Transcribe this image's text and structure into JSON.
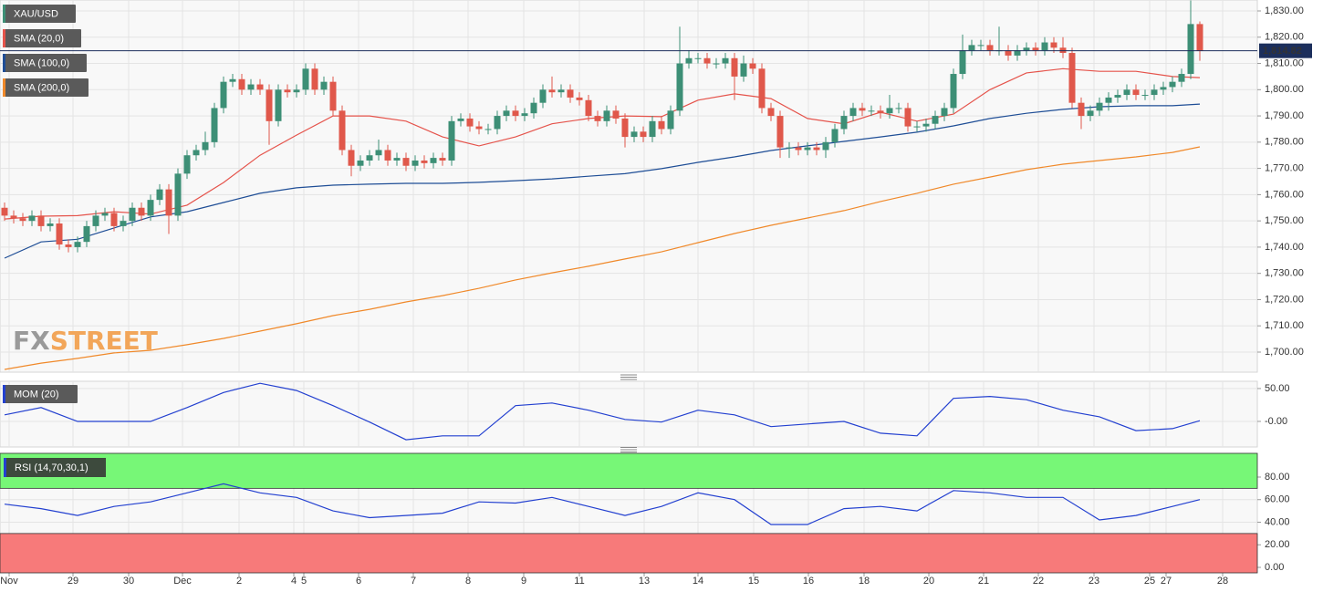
{
  "chart_data": [
    {
      "type": "candlestick",
      "title": "XAU/USD",
      "colors": {
        "up": "#3d8f76",
        "down": "#e0584b"
      },
      "last_price_label": "1,814.82",
      "last_price_color": "#1c2f5c",
      "watermark": {
        "part1": "FX",
        "part2": "STREET",
        "color1": "#9a9a9a",
        "color2": "#f2a65a"
      },
      "open": [
        1755,
        1752,
        1751,
        1750,
        1752,
        1748,
        1749,
        1741,
        1740,
        1742,
        1748,
        1752,
        1753,
        1748,
        1750,
        1755,
        1752,
        1758,
        1762,
        1752,
        1768,
        1775,
        1777,
        1780,
        1793,
        1803,
        1804,
        1800,
        1802,
        1800,
        1788,
        1800,
        1799,
        1800,
        1808,
        1800,
        1803,
        1792,
        1777,
        1771,
        1773,
        1775,
        1777,
        1773,
        1774,
        1771,
        1773,
        1772,
        1774,
        1773,
        1788,
        1789,
        1786,
        1785,
        1785,
        1790,
        1792,
        1790,
        1791,
        1795,
        1800,
        1799,
        1800,
        1797,
        1796,
        1790,
        1788,
        1792,
        1789,
        1782,
        1784,
        1782,
        1788,
        1785,
        1792,
        1810,
        1812,
        1812,
        1810,
        1810,
        1812,
        1805,
        1810,
        1808,
        1793,
        1790,
        1778,
        1778,
        1777,
        1778,
        1777,
        1780,
        1785,
        1790,
        1793,
        1792,
        1792,
        1791,
        1793,
        1793,
        1786,
        1786,
        1787,
        1790,
        1793,
        1806,
        1815,
        1817,
        1817,
        1815,
        1815,
        1813,
        1815,
        1816,
        1815,
        1818,
        1816,
        1814,
        1795,
        1790,
        1792,
        1795,
        1797,
        1798,
        1800,
        1798,
        1798,
        1800,
        1801,
        1803,
        1806,
        1825
      ],
      "high": [
        1757,
        1754,
        1753,
        1754,
        1754,
        1751,
        1751,
        1743,
        1744,
        1750,
        1754,
        1755,
        1755,
        1752,
        1757,
        1757,
        1760,
        1764,
        1764,
        1770,
        1777,
        1779,
        1784,
        1795,
        1805,
        1806,
        1806,
        1804,
        1804,
        1802,
        1802,
        1802,
        1802,
        1810,
        1810,
        1805,
        1805,
        1794,
        1779,
        1775,
        1777,
        1781,
        1779,
        1776,
        1776,
        1775,
        1775,
        1776,
        1776,
        1790,
        1791,
        1791,
        1788,
        1787,
        1792,
        1794,
        1794,
        1793,
        1797,
        1802,
        1805,
        1802,
        1802,
        1799,
        1798,
        1792,
        1794,
        1794,
        1791,
        1786,
        1786,
        1790,
        1790,
        1794,
        1824,
        1815,
        1814,
        1814,
        1812,
        1814,
        1814,
        1813,
        1812,
        1810,
        1795,
        1792,
        1780,
        1780,
        1780,
        1780,
        1782,
        1787,
        1792,
        1795,
        1795,
        1794,
        1794,
        1798,
        1795,
        1795,
        1788,
        1789,
        1792,
        1795,
        1808,
        1821,
        1819,
        1819,
        1819,
        1824,
        1817,
        1817,
        1818,
        1818,
        1820,
        1820,
        1820,
        1816,
        1797,
        1794,
        1797,
        1799,
        1800,
        1802,
        1802,
        1800,
        1802,
        1803,
        1805,
        1808,
        1834,
        1826
      ],
      "low": [
        1750,
        1749,
        1748,
        1748,
        1746,
        1746,
        1739,
        1738,
        1738,
        1740,
        1746,
        1750,
        1746,
        1746,
        1748,
        1750,
        1750,
        1756,
        1745,
        1750,
        1766,
        1773,
        1775,
        1778,
        1791,
        1801,
        1798,
        1798,
        1798,
        1779,
        1786,
        1797,
        1797,
        1798,
        1798,
        1798,
        1790,
        1775,
        1767,
        1769,
        1771,
        1773,
        1771,
        1771,
        1769,
        1769,
        1770,
        1770,
        1771,
        1771,
        1786,
        1784,
        1783,
        1783,
        1783,
        1788,
        1788,
        1788,
        1789,
        1793,
        1797,
        1797,
        1795,
        1794,
        1788,
        1786,
        1786,
        1787,
        1778,
        1780,
        1780,
        1780,
        1783,
        1783,
        1790,
        1808,
        1810,
        1808,
        1808,
        1808,
        1796,
        1803,
        1806,
        1791,
        1788,
        1774,
        1774,
        1775,
        1775,
        1775,
        1774,
        1778,
        1783,
        1788,
        1790,
        1790,
        1789,
        1789,
        1791,
        1784,
        1784,
        1784,
        1785,
        1788,
        1791,
        1804,
        1813,
        1815,
        1813,
        1813,
        1811,
        1811,
        1813,
        1813,
        1813,
        1814,
        1812,
        1793,
        1785,
        1788,
        1790,
        1792,
        1795,
        1796,
        1796,
        1796,
        1796,
        1798,
        1799,
        1801,
        1804,
        1811
      ],
      "close": [
        1752,
        1751,
        1750,
        1752,
        1748,
        1749,
        1741,
        1740,
        1742,
        1748,
        1752,
        1753,
        1748,
        1750,
        1755,
        1752,
        1758,
        1762,
        1752,
        1768,
        1775,
        1777,
        1780,
        1793,
        1803,
        1804,
        1800,
        1802,
        1800,
        1788,
        1800,
        1799,
        1800,
        1808,
        1800,
        1803,
        1792,
        1777,
        1771,
        1773,
        1775,
        1777,
        1773,
        1774,
        1771,
        1773,
        1772,
        1774,
        1773,
        1788,
        1789,
        1786,
        1785,
        1785,
        1790,
        1792,
        1790,
        1791,
        1795,
        1800,
        1799,
        1800,
        1797,
        1796,
        1790,
        1788,
        1792,
        1789,
        1782,
        1784,
        1782,
        1788,
        1785,
        1792,
        1810,
        1812,
        1812,
        1810,
        1810,
        1812,
        1805,
        1810,
        1808,
        1793,
        1790,
        1778,
        1778,
        1777,
        1778,
        1777,
        1780,
        1785,
        1790,
        1793,
        1792,
        1792,
        1791,
        1793,
        1793,
        1786,
        1786,
        1787,
        1790,
        1793,
        1806,
        1815,
        1817,
        1817,
        1815,
        1815,
        1813,
        1815,
        1816,
        1815,
        1818,
        1816,
        1814,
        1795,
        1790,
        1792,
        1795,
        1797,
        1798,
        1800,
        1798,
        1798,
        1800,
        1801,
        1803,
        1806,
        1825,
        1814.82
      ],
      "series": [
        {
          "name": "SMA (20,0)",
          "color": "#e5534b",
          "x": [
            0,
            4,
            8,
            12,
            16,
            20,
            24,
            28,
            32,
            36,
            40,
            44,
            48,
            52,
            56,
            60,
            64,
            68,
            72,
            76,
            80,
            84,
            88,
            92,
            96,
            100,
            104,
            108,
            112,
            116,
            120,
            124,
            128,
            131
          ],
          "values": [
            1750.7,
            1751.8,
            1752,
            1753.5,
            1752.6,
            1756,
            1764.6,
            1775,
            1782.7,
            1790,
            1790,
            1788,
            1782,
            1778.6,
            1782,
            1787,
            1789,
            1790,
            1789.7,
            1796,
            1798.4,
            1796.6,
            1789,
            1787,
            1791.4,
            1788,
            1790.7,
            1800,
            1806.4,
            1808,
            1807,
            1807,
            1805,
            1804.6
          ]
        },
        {
          "name": "SMA (100,0)",
          "color": "#1f4e96",
          "x": [
            0,
            4,
            8,
            12,
            16,
            20,
            24,
            28,
            32,
            36,
            40,
            44,
            48,
            52,
            56,
            60,
            64,
            68,
            72,
            76,
            80,
            84,
            88,
            92,
            96,
            100,
            104,
            108,
            112,
            116,
            120,
            124,
            128,
            131
          ],
          "values": [
            1735.8,
            1742,
            1743,
            1747.3,
            1751.5,
            1753.5,
            1757,
            1760.5,
            1762.6,
            1763.6,
            1764,
            1764.3,
            1764.3,
            1764.7,
            1765.3,
            1766,
            1767,
            1768,
            1769.9,
            1772.3,
            1774.4,
            1776.8,
            1778.6,
            1780.3,
            1782,
            1783.8,
            1786.2,
            1789,
            1791,
            1792.5,
            1793.5,
            1793.9,
            1793.9,
            1794.5
          ]
        },
        {
          "name": "SMA (200,0)",
          "color": "#f0892a",
          "x": [
            0,
            4,
            8,
            12,
            16,
            20,
            24,
            28,
            32,
            36,
            40,
            44,
            48,
            52,
            56,
            60,
            64,
            68,
            72,
            76,
            80,
            84,
            88,
            92,
            96,
            100,
            104,
            108,
            112,
            116,
            120,
            124,
            128,
            131
          ],
          "values": [
            1693.4,
            1695.8,
            1697.6,
            1699.7,
            1700.7,
            1702.8,
            1705.2,
            1708,
            1710.8,
            1713.9,
            1716.3,
            1719.1,
            1721.5,
            1724.3,
            1727.5,
            1730.2,
            1732.7,
            1735.5,
            1738.2,
            1741.7,
            1745.2,
            1748.3,
            1751.1,
            1753.9,
            1757.4,
            1760.5,
            1764,
            1766.7,
            1769.5,
            1771.6,
            1773,
            1774.4,
            1776.1,
            1778.2
          ]
        }
      ],
      "ylim": [
        1692.35,
        1834.17
      ],
      "yticks": [
        {
          "value": 1700,
          "label": "1,700.00"
        },
        {
          "value": 1710,
          "label": "1,710.00"
        },
        {
          "value": 1720,
          "label": "1,720.00"
        },
        {
          "value": 1730,
          "label": "1,730.00"
        },
        {
          "value": 1740,
          "label": "1,740.00"
        },
        {
          "value": 1750,
          "label": "1,750.00"
        },
        {
          "value": 1760,
          "label": "1,760.00"
        },
        {
          "value": 1770,
          "label": "1,770.00"
        },
        {
          "value": 1780,
          "label": "1,780.00"
        },
        {
          "value": 1790,
          "label": "1,790.00"
        },
        {
          "value": 1800,
          "label": "1,800.00"
        },
        {
          "value": 1810,
          "label": "1,810.00"
        },
        {
          "value": 1820,
          "label": "1,820.00"
        },
        {
          "value": 1830,
          "label": "1,830.00"
        }
      ],
      "xlim": [
        -0.5,
        137.3
      ],
      "xticks": [
        {
          "value": 0.5,
          "label": "Nov"
        },
        {
          "value": 7.5,
          "label": "29"
        },
        {
          "value": 13.6,
          "label": "30"
        },
        {
          "value": 19.5,
          "label": "Dec"
        },
        {
          "value": 25.7,
          "label": "2"
        },
        {
          "value": 31.7,
          "label": "4"
        },
        {
          "value": 32.8,
          "label": "5"
        },
        {
          "value": 38.8,
          "label": "6"
        },
        {
          "value": 44.8,
          "label": "7"
        },
        {
          "value": 50.8,
          "label": "8"
        },
        {
          "value": 56.9,
          "label": "9"
        },
        {
          "value": 63,
          "label": "11"
        },
        {
          "value": 70.1,
          "label": "13"
        },
        {
          "value": 76,
          "label": "14"
        },
        {
          "value": 82.1,
          "label": "15"
        },
        {
          "value": 88.1,
          "label": "16"
        },
        {
          "value": 94.2,
          "label": "18"
        },
        {
          "value": 101.3,
          "label": "20"
        },
        {
          "value": 107.3,
          "label": "21"
        },
        {
          "value": 113.3,
          "label": "22"
        },
        {
          "value": 119.4,
          "label": "23"
        },
        {
          "value": 125.5,
          "label": "25"
        },
        {
          "value": 127.3,
          "label": "27"
        },
        {
          "value": 133.5,
          "label": "28"
        }
      ],
      "grid": true
    },
    {
      "type": "line",
      "series": [
        {
          "name": "MOM (20)",
          "color": "#2340d0",
          "x": [
            0,
            4,
            8,
            12,
            16,
            20,
            24,
            28,
            32,
            36,
            40,
            44,
            48,
            52,
            56,
            60,
            64,
            68,
            72,
            76,
            80,
            84,
            88,
            92,
            96,
            100,
            104,
            108,
            112,
            116,
            120,
            124,
            128,
            131
          ],
          "values": [
            10,
            21,
            0,
            0,
            0,
            21,
            44,
            58,
            47,
            24,
            -1,
            -28,
            -22,
            -22,
            24,
            28,
            17,
            3,
            -1,
            17,
            10,
            -8,
            -4,
            0,
            -18,
            -22,
            35,
            38,
            33,
            17,
            7,
            -14,
            -11,
            1
          ]
        }
      ],
      "ylim": [
        -38.9,
        61
      ],
      "yticks": [
        {
          "value": 0,
          "label": "-0.00"
        },
        {
          "value": 50,
          "label": "50.00"
        }
      ],
      "grid": true
    },
    {
      "type": "line",
      "series": [
        {
          "name": "RSI (14,70,30,1)",
          "color": "#2340d0",
          "x": [
            0,
            4,
            8,
            12,
            16,
            20,
            24,
            28,
            32,
            36,
            40,
            44,
            48,
            52,
            56,
            60,
            64,
            68,
            72,
            76,
            80,
            84,
            88,
            92,
            96,
            100,
            104,
            108,
            112,
            116,
            120,
            124,
            128,
            131
          ],
          "values": [
            56,
            52,
            46,
            54,
            58,
            66,
            74,
            66,
            62,
            50,
            44,
            46,
            48,
            58,
            57,
            62,
            54,
            46,
            54,
            66,
            60,
            38,
            38,
            52,
            54,
            50,
            68,
            66,
            62,
            62,
            42,
            46,
            54,
            60
          ]
        }
      ],
      "overbought": 70,
      "oversold": 30,
      "overbought_color": "#77f777",
      "oversold_color": "#f77a7a",
      "ylim": [
        -4.85,
        101
      ],
      "yticks": [
        {
          "value": 0,
          "label": "0.00"
        },
        {
          "value": 20,
          "label": "20.00"
        },
        {
          "value": 40,
          "label": "40.00"
        },
        {
          "value": 60,
          "label": "60.00"
        },
        {
          "value": 80,
          "label": "80.00"
        }
      ],
      "grid": true
    }
  ]
}
